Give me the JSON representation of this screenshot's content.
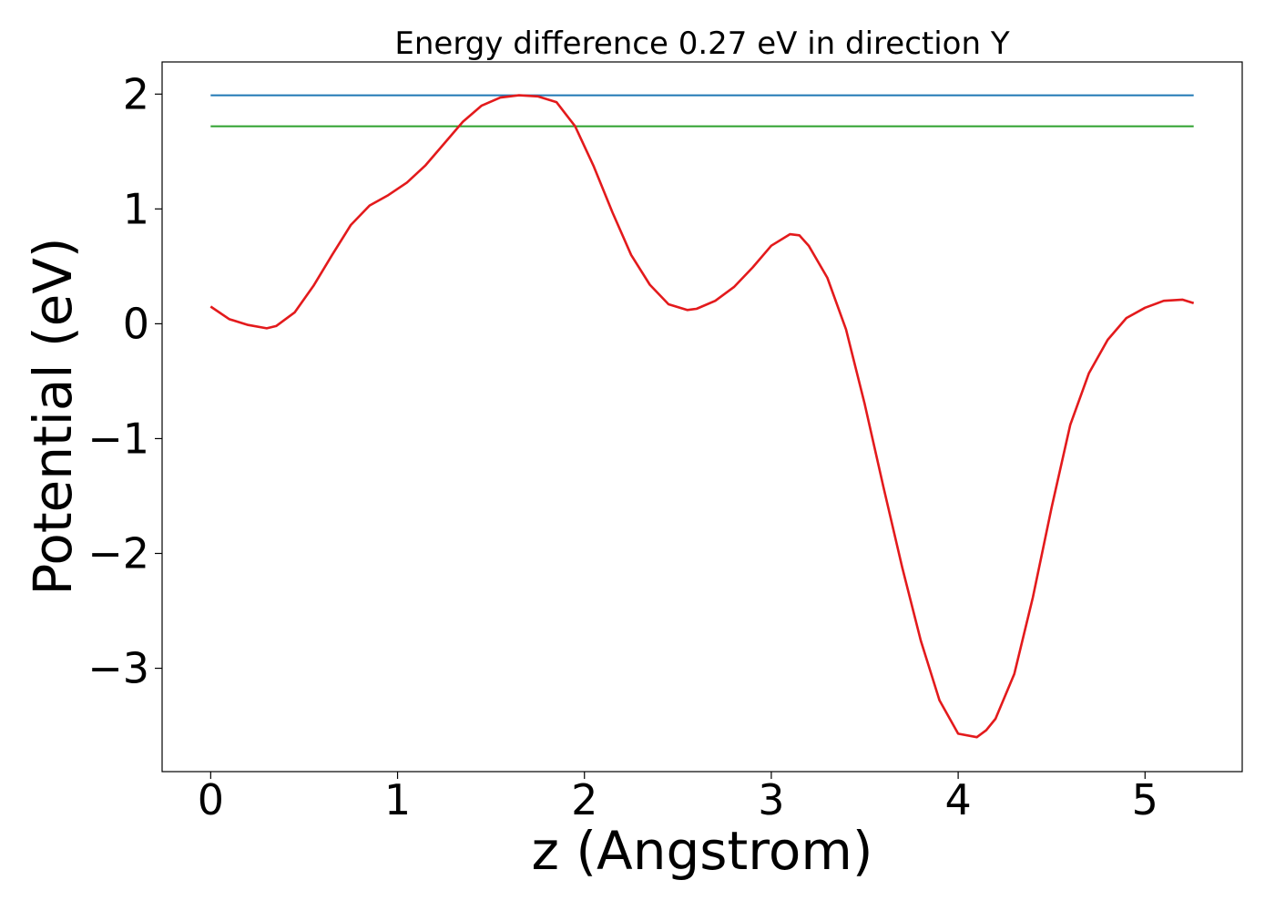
{
  "chart_data": {
    "type": "line",
    "title": "Energy difference 0.27 eV in direction Y",
    "xlabel": "z (Angstrom)",
    "ylabel": "Potential (eV)",
    "xlim": [
      -0.26,
      5.52
    ],
    "ylim": [
      -3.9,
      2.28
    ],
    "xticks": [
      0,
      1,
      2,
      3,
      4,
      5
    ],
    "xtick_labels": [
      "0",
      "1",
      "2",
      "3",
      "4",
      "5"
    ],
    "yticks": [
      -3,
      -2,
      -1,
      0,
      1,
      2
    ],
    "ytick_labels": [
      "−3",
      "−2",
      "−1",
      "0",
      "1",
      "2"
    ],
    "grid": false,
    "series": [
      {
        "color": "#1f77b4",
        "x": [
          0,
          5.26
        ],
        "y": [
          1.99,
          1.99
        ]
      },
      {
        "color": "#2ca02c",
        "x": [
          0,
          5.26
        ],
        "y": [
          1.72,
          1.72
        ]
      },
      {
        "color": "#e31a1c",
        "x": [
          0,
          0.1,
          0.2,
          0.3,
          0.35,
          0.45,
          0.55,
          0.65,
          0.75,
          0.85,
          0.95,
          1.05,
          1.15,
          1.25,
          1.35,
          1.45,
          1.55,
          1.65,
          1.75,
          1.85,
          1.95,
          2.05,
          2.15,
          2.25,
          2.35,
          2.45,
          2.55,
          2.6,
          2.7,
          2.8,
          2.9,
          3.0,
          3.1,
          3.15,
          3.2,
          3.3,
          3.4,
          3.5,
          3.6,
          3.7,
          3.8,
          3.9,
          4.0,
          4.1,
          4.15,
          4.2,
          4.3,
          4.4,
          4.5,
          4.6,
          4.7,
          4.8,
          4.9,
          5.0,
          5.1,
          5.2,
          5.26
        ],
        "y": [
          0.15,
          0.04,
          -0.01,
          -0.04,
          -0.02,
          0.1,
          0.33,
          0.6,
          0.86,
          1.03,
          1.12,
          1.23,
          1.38,
          1.57,
          1.76,
          1.9,
          1.97,
          1.99,
          1.98,
          1.93,
          1.72,
          1.37,
          0.97,
          0.6,
          0.34,
          0.17,
          0.12,
          0.13,
          0.2,
          0.32,
          0.49,
          0.68,
          0.78,
          0.77,
          0.68,
          0.4,
          -0.05,
          -0.7,
          -1.42,
          -2.12,
          -2.76,
          -3.28,
          -3.57,
          -3.6,
          -3.54,
          -3.44,
          -3.05,
          -2.38,
          -1.6,
          -0.88,
          -0.43,
          -0.14,
          0.05,
          0.14,
          0.2,
          0.21,
          0.18
        ]
      }
    ]
  }
}
